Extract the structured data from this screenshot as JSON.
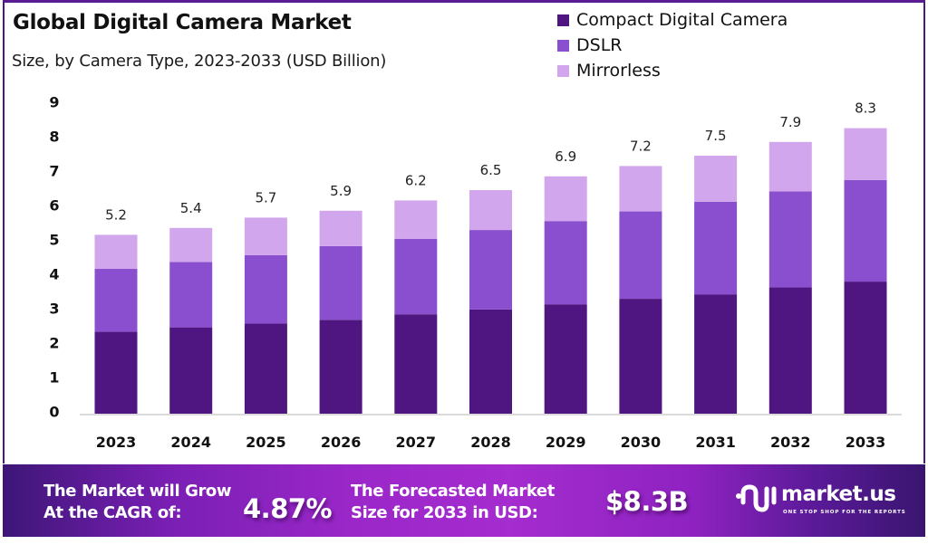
{
  "header": {
    "title": "Global Digital Camera Market",
    "subtitle": "Size, by Camera Type, 2023-2033 (USD Billion)"
  },
  "legend": [
    {
      "label": "Compact Digital Camera",
      "color": "#4f1580"
    },
    {
      "label": "DSLR",
      "color": "#8a4fcf"
    },
    {
      "label": "Mirrorless",
      "color": "#d2a6ec"
    }
  ],
  "chart_data": {
    "type": "bar",
    "stacked": true,
    "title": "Global Digital Camera Market",
    "subtitle": "Size, by Camera Type, 2023-2033 (USD Billion)",
    "xlabel": "",
    "ylabel": "",
    "ylim": [
      0,
      9
    ],
    "yticks": [
      0,
      1,
      2,
      3,
      4,
      5,
      6,
      7,
      8,
      9
    ],
    "grid": false,
    "legend_position": "top-right",
    "categories": [
      "2023",
      "2024",
      "2025",
      "2026",
      "2027",
      "2028",
      "2029",
      "2030",
      "2031",
      "2032",
      "2033"
    ],
    "series": [
      {
        "name": "Compact Digital Camera",
        "color": "#4f1580",
        "values": [
          2.38,
          2.51,
          2.62,
          2.73,
          2.89,
          3.03,
          3.18,
          3.34,
          3.47,
          3.67,
          3.84
        ]
      },
      {
        "name": "DSLR",
        "color": "#8a4fcf",
        "values": [
          1.83,
          1.9,
          1.99,
          2.14,
          2.19,
          2.31,
          2.42,
          2.54,
          2.69,
          2.79,
          2.95
        ]
      },
      {
        "name": "Mirrorless",
        "color": "#d2a6ec",
        "values": [
          0.99,
          0.99,
          1.09,
          1.03,
          1.12,
          1.16,
          1.3,
          1.32,
          1.34,
          1.44,
          1.51
        ]
      }
    ],
    "totals": [
      5.2,
      5.4,
      5.7,
      5.9,
      6.2,
      6.5,
      6.9,
      7.2,
      7.5,
      7.9,
      8.3
    ],
    "total_labels": [
      "5.2",
      "5.4",
      "5.7",
      "5.9",
      "6.2",
      "6.5",
      "6.9",
      "7.2",
      "7.5",
      "7.9",
      "8.3"
    ]
  },
  "banner": {
    "cagr_line1": "The Market will Grow",
    "cagr_line2": "At the CAGR of:",
    "cagr_value": "4.87%",
    "forecast_line1": "The Forecasted Market",
    "forecast_line2": "Size for 2033 in USD:",
    "forecast_value": "$8.3B",
    "logo_name": "market.us",
    "logo_tagline": "ONE STOP SHOP FOR THE REPORTS",
    "logo_icon": "market-us-logo-icon"
  }
}
